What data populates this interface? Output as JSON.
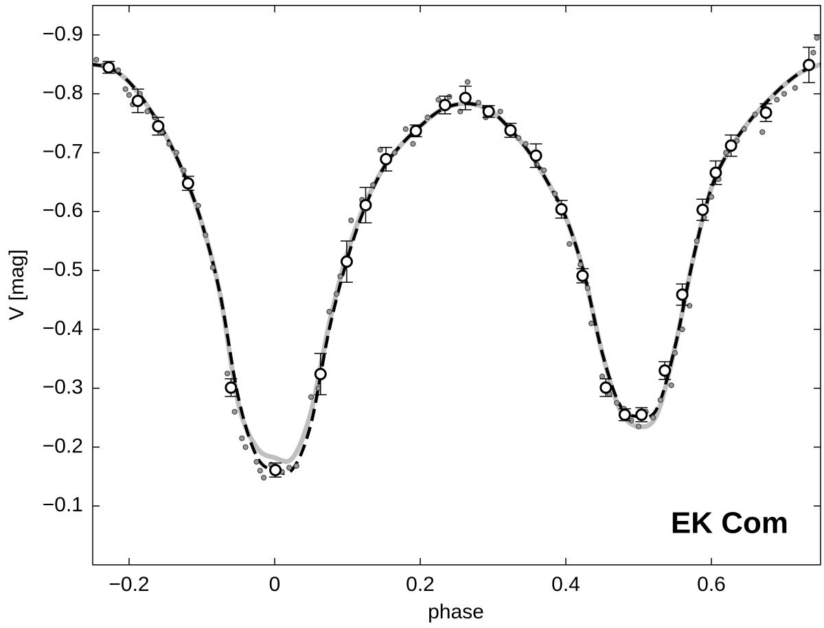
{
  "chart_data": {
    "type": "scatter",
    "xlabel": "phase",
    "ylabel": "V  [mag]",
    "annotation": "EK Com",
    "xlim": [
      -0.25,
      0.75
    ],
    "ylim": [
      0,
      -0.95
    ],
    "xticks": [
      {
        "value": -0.2,
        "label": "−0.2"
      },
      0,
      0.2,
      0.4,
      0.6
    ],
    "yticks": [
      {
        "value": -0.9,
        "label": "−0.9"
      },
      {
        "value": -0.8,
        "label": "−0.8"
      },
      {
        "value": -0.7,
        "label": "−0.7"
      },
      {
        "value": -0.6,
        "label": "−0.6"
      },
      {
        "value": -0.5,
        "label": "−0.5"
      },
      {
        "value": -0.4,
        "label": "−0.4"
      },
      {
        "value": -0.3,
        "label": "−0.3"
      },
      {
        "value": -0.2,
        "label": "−0.2"
      },
      {
        "value": -0.1,
        "label": "−0.1"
      }
    ],
    "model_x": [
      -0.25,
      -0.225,
      -0.2,
      -0.175,
      -0.15,
      -0.125,
      -0.1,
      -0.075,
      -0.05,
      -0.025,
      0,
      0.025,
      0.05,
      0.075,
      0.1,
      0.125,
      0.15,
      0.175,
      0.2,
      0.225,
      0.25,
      0.275,
      0.3,
      0.325,
      0.35,
      0.375,
      0.4,
      0.425,
      0.45,
      0.475,
      0.5,
      0.525,
      0.55,
      0.575,
      0.6,
      0.625,
      0.65,
      0.675,
      0.7,
      0.725,
      0.75
    ],
    "series": [
      {
        "color": "#c0c0c0",
        "dashed": false,
        "values": [
          -0.85,
          -0.843,
          -0.82,
          -0.78,
          -0.73,
          -0.665,
          -0.58,
          -0.46,
          -0.275,
          -0.2,
          -0.182,
          -0.182,
          -0.26,
          -0.41,
          -0.53,
          -0.615,
          -0.675,
          -0.715,
          -0.745,
          -0.77,
          -0.782,
          -0.782,
          -0.768,
          -0.738,
          -0.7,
          -0.65,
          -0.59,
          -0.495,
          -0.36,
          -0.262,
          -0.235,
          -0.255,
          -0.37,
          -0.52,
          -0.64,
          -0.705,
          -0.75,
          -0.785,
          -0.815,
          -0.838,
          -0.85
        ]
      },
      {
        "color": "#000000",
        "dashed": true,
        "values": [
          -0.85,
          -0.843,
          -0.82,
          -0.78,
          -0.73,
          -0.665,
          -0.58,
          -0.46,
          -0.285,
          -0.185,
          -0.16,
          -0.163,
          -0.24,
          -0.4,
          -0.52,
          -0.61,
          -0.675,
          -0.715,
          -0.745,
          -0.77,
          -0.782,
          -0.782,
          -0.768,
          -0.738,
          -0.7,
          -0.65,
          -0.59,
          -0.495,
          -0.36,
          -0.27,
          -0.252,
          -0.265,
          -0.37,
          -0.52,
          -0.64,
          -0.705,
          -0.75,
          -0.785,
          -0.815,
          -0.838,
          -0.85
        ]
      }
    ],
    "points": {
      "color": "#999999",
      "x": [
        -0.245,
        -0.235,
        -0.215,
        -0.205,
        -0.2,
        -0.195,
        -0.185,
        -0.175,
        -0.165,
        -0.155,
        -0.145,
        -0.135,
        -0.125,
        -0.105,
        -0.095,
        -0.085,
        -0.065,
        -0.055,
        -0.045,
        -0.04,
        -0.025,
        -0.02,
        -0.015,
        -0.005,
        0.01,
        0.02,
        0.03,
        0.05,
        0.06,
        0.075,
        0.085,
        0.09,
        0.105,
        0.12,
        0.135,
        0.145,
        0.165,
        0.18,
        0.19,
        0.21,
        0.225,
        0.24,
        0.255,
        0.265,
        0.28,
        0.29,
        0.31,
        0.32,
        0.335,
        0.345,
        0.36,
        0.37,
        0.385,
        0.395,
        0.405,
        0.42,
        0.43,
        0.435,
        0.45,
        0.46,
        0.47,
        0.48,
        0.49,
        0.5,
        0.51,
        0.52,
        0.53,
        0.545,
        0.55,
        0.56,
        0.57,
        0.58,
        0.59,
        0.6,
        0.61,
        0.62,
        0.635,
        0.645,
        0.66,
        0.67,
        0.69,
        0.7,
        0.715,
        0.74,
        0.745
      ],
      "y": [
        -0.858,
        -0.848,
        -0.84,
        -0.808,
        -0.798,
        -0.782,
        -0.8,
        -0.77,
        -0.76,
        -0.735,
        -0.715,
        -0.7,
        -0.67,
        -0.61,
        -0.56,
        -0.505,
        -0.325,
        -0.26,
        -0.215,
        -0.2,
        -0.175,
        -0.16,
        -0.148,
        -0.17,
        -0.158,
        -0.165,
        -0.168,
        -0.285,
        -0.3,
        -0.43,
        -0.46,
        -0.49,
        -0.585,
        -0.62,
        -0.645,
        -0.705,
        -0.7,
        -0.74,
        -0.715,
        -0.76,
        -0.79,
        -0.795,
        -0.77,
        -0.82,
        -0.785,
        -0.76,
        -0.77,
        -0.735,
        -0.725,
        -0.715,
        -0.68,
        -0.67,
        -0.63,
        -0.6,
        -0.545,
        -0.51,
        -0.47,
        -0.41,
        -0.32,
        -0.29,
        -0.275,
        -0.265,
        -0.245,
        -0.235,
        -0.26,
        -0.25,
        -0.28,
        -0.305,
        -0.36,
        -0.4,
        -0.44,
        -0.55,
        -0.59,
        -0.625,
        -0.655,
        -0.7,
        -0.72,
        -0.74,
        -0.765,
        -0.735,
        -0.79,
        -0.8,
        -0.81,
        -0.87,
        -0.895
      ]
    },
    "binned": {
      "x": [
        -0.228,
        -0.188,
        -0.16,
        -0.119,
        -0.06,
        0.001,
        0.063,
        0.099,
        0.125,
        0.153,
        0.194,
        0.234,
        0.262,
        0.294,
        0.324,
        0.359,
        0.394,
        0.423,
        0.455,
        0.481,
        0.504,
        0.536,
        0.56,
        0.588,
        0.606,
        0.627,
        0.675,
        0.734
      ],
      "y": [
        -0.845,
        -0.788,
        -0.745,
        -0.648,
        -0.301,
        -0.161,
        -0.324,
        -0.515,
        -0.611,
        -0.689,
        -0.737,
        -0.781,
        -0.793,
        -0.77,
        -0.738,
        -0.695,
        -0.604,
        -0.491,
        -0.301,
        -0.255,
        -0.255,
        -0.33,
        -0.459,
        -0.603,
        -0.666,
        -0.712,
        -0.768,
        -0.849
      ],
      "err": [
        0.01,
        0.02,
        0.015,
        0.012,
        0.015,
        0.012,
        0.035,
        0.035,
        0.03,
        0.02,
        0.01,
        0.015,
        0.02,
        0.01,
        0.012,
        0.02,
        0.015,
        0.012,
        0.015,
        0.01,
        0.012,
        0.015,
        0.018,
        0.018,
        0.02,
        0.018,
        0.015,
        0.03
      ]
    }
  }
}
